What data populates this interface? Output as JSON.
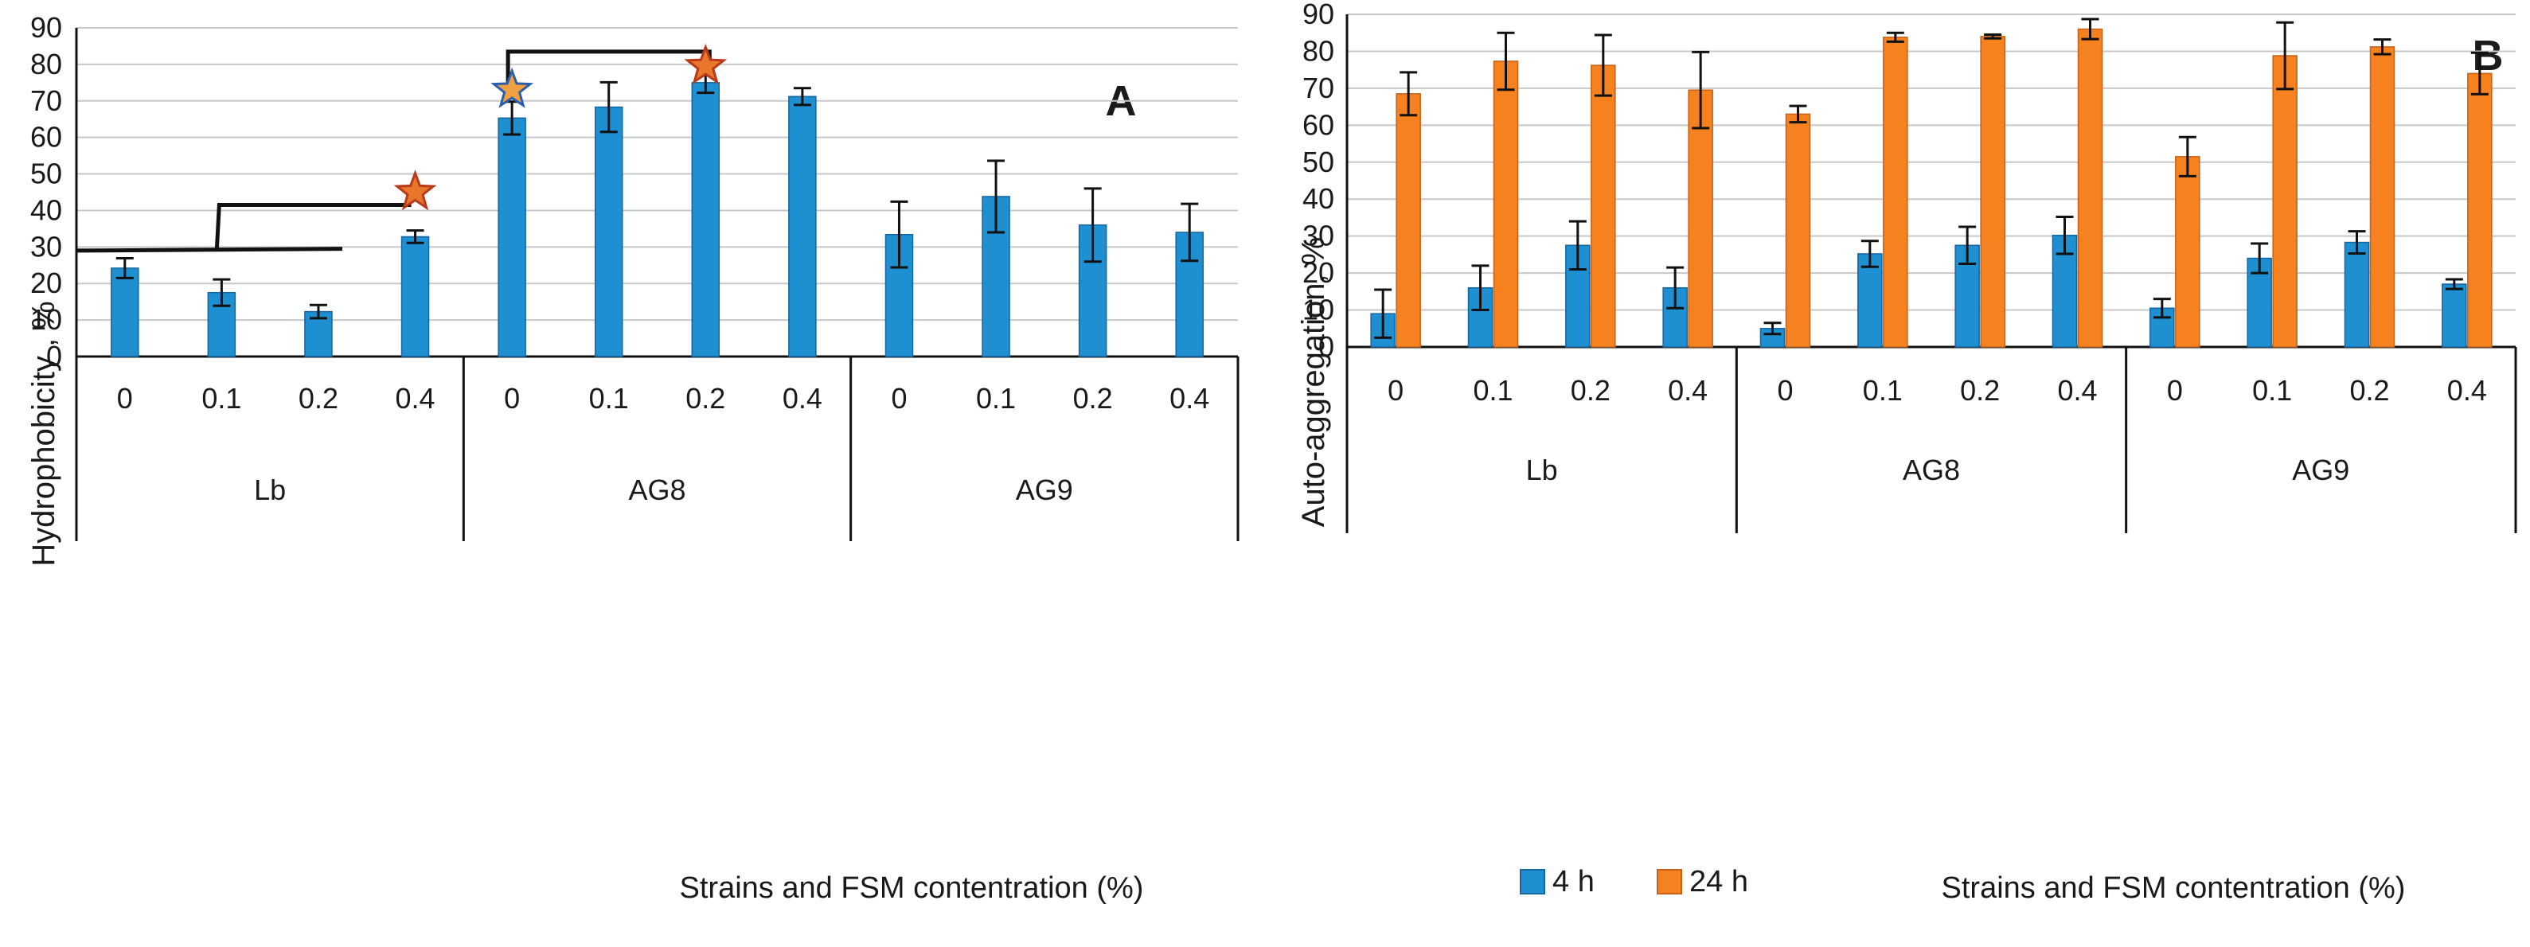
{
  "chart_data": [
    {
      "type": "bar",
      "panel": "A",
      "title": "",
      "ylabel": "Hydrophobicity , %",
      "xlabel": "Strains and FSM contentration (%)",
      "ylim": [
        0,
        90
      ],
      "ytick_step": 10,
      "groups": [
        "Lb",
        "AG8",
        "AG9"
      ],
      "categories": [
        "0",
        "0.1",
        "0.2",
        "0.4"
      ],
      "series": [
        {
          "name": "Hydrophobicity",
          "color": "#1e8fd0",
          "values": [
            [
              24.2,
              17.5,
              12.3,
              32.8
            ],
            [
              65.3,
              68.3,
              75.0,
              71.2
            ],
            [
              33.4,
              43.8,
              36.0,
              34.0
            ]
          ],
          "errors": [
            [
              2.7,
              3.6,
              1.8,
              1.7
            ],
            [
              4.5,
              6.8,
              2.8,
              2.3
            ],
            [
              9.0,
              9.8,
              10.0,
              7.8
            ]
          ]
        }
      ],
      "annotations": {
        "stars": [
          {
            "group": 0,
            "cat": 3,
            "value": 45,
            "color": "orange"
          },
          {
            "group": 1,
            "cat": 0,
            "value": 73,
            "color": "blue"
          },
          {
            "group": 1,
            "cat": 2,
            "value": 79.5,
            "color": "orange"
          }
        ],
        "brackets": [
          "Lb 0-0.2 vs Lb 0.4",
          "AG8 0 vs AG8 0.2"
        ]
      }
    },
    {
      "type": "bar",
      "panel": "B",
      "title": "",
      "ylabel": "Auto-aggregation, %",
      "xlabel": "Strains and FSM contentration (%)",
      "ylim": [
        0,
        90
      ],
      "ytick_step": 10,
      "groups": [
        "Lb",
        "AG8",
        "AG9"
      ],
      "categories": [
        "0",
        "0.1",
        "0.2",
        "0.4"
      ],
      "legend": "bottom-left",
      "series": [
        {
          "name": "4 h",
          "color": "#1e8fd0",
          "values": [
            [
              9.0,
              16.0,
              27.5,
              16.0
            ],
            [
              5.0,
              25.2,
              27.5,
              30.2
            ],
            [
              10.5,
              24.0,
              28.3,
              17.0
            ]
          ],
          "errors": [
            [
              6.5,
              6.0,
              6.5,
              5.5
            ],
            [
              1.5,
              3.5,
              5.0,
              5.0
            ],
            [
              2.5,
              4.0,
              3.0,
              1.3
            ]
          ]
        },
        {
          "name": "24 h",
          "color": "#f5821f",
          "values": [
            [
              68.5,
              77.3,
              76.2,
              69.5
            ],
            [
              63.0,
              83.8,
              84.0,
              86.0
            ],
            [
              51.5,
              78.8,
              81.2,
              74.0
            ]
          ],
          "errors": [
            [
              5.8,
              7.7,
              8.2,
              10.3
            ],
            [
              2.2,
              1.2,
              0.5,
              2.7
            ],
            [
              5.3,
              9.0,
              2.0,
              5.6
            ]
          ]
        }
      ]
    }
  ],
  "panel_letters": {
    "a": "A",
    "b": "B"
  },
  "legend_labels": {
    "s1": "4 h",
    "s2": "24 h"
  },
  "axis_titles": {
    "a_y": "Hydrophobicity , %",
    "a_x": "Strains and FSM contentration (%)",
    "b_y": "Auto-aggregation, %",
    "b_x": "Strains and FSM contentration (%)"
  },
  "colors": {
    "blue": "#1e8fd0",
    "orange": "#f5821f",
    "star_orange": "#e8762b",
    "star_edge": "#b83a1a",
    "star_blue_fill": "#f0a040",
    "star_blue_edge": "#2a5fb0"
  }
}
